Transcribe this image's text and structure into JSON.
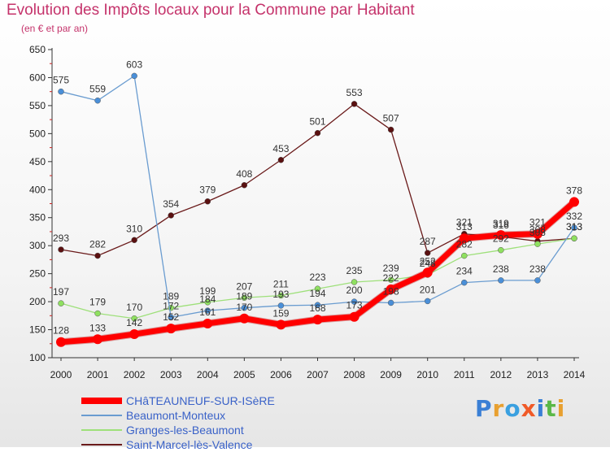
{
  "header": {
    "title": "Evolution des Impôts locaux pour la Commune par Habitant",
    "subtitle": "(en € et par an)"
  },
  "logo": {
    "text": "Proxiti",
    "colors": [
      "#3a7fd5",
      "#e8a030",
      "#3aa0e0",
      "#f05a28",
      "#3a7fd5",
      "#5ab848",
      "#e8a030"
    ]
  },
  "chart_data": {
    "type": "line",
    "title": "Evolution des Impôts locaux pour la Commune par Habitant",
    "subtitle": "(en € et par an)",
    "x": [
      "2000",
      "2001",
      "2002",
      "2003",
      "2004",
      "2005",
      "2006",
      "2007",
      "2008",
      "2009",
      "2010",
      "2011",
      "2012",
      "2013",
      "2014"
    ],
    "ylim": [
      100,
      650
    ],
    "yticks": [
      100,
      150,
      200,
      250,
      300,
      350,
      400,
      450,
      500,
      550,
      600,
      650
    ],
    "grid": false,
    "legend_position": "bottom-left",
    "series": [
      {
        "name": "CHâTEAUNEUF-SUR-ISèRE",
        "color": "#ff0000",
        "values": [
          128,
          133,
          142,
          152,
          161,
          170,
          159,
          168,
          173,
          222,
          252,
          313,
          319,
          321,
          378
        ],
        "labels": [
          "128",
          "133",
          "142",
          "152",
          "161",
          "170",
          "159",
          "168",
          "173",
          "222",
          "252",
          "313",
          "319",
          "321",
          "378"
        ]
      },
      {
        "name": "Beaumont-Monteux",
        "color": "#6a9cd0",
        "values": [
          575,
          559,
          603,
          172,
          184,
          189,
          193,
          194,
          200,
          198,
          201,
          234,
          238,
          238,
          332
        ],
        "labels": [
          "575",
          "559",
          "603",
          "172",
          "184",
          "189",
          "193",
          "194",
          "200",
          "198",
          "201",
          "234",
          "238",
          "238",
          "332"
        ]
      },
      {
        "name": "Granges-les-Beaumont",
        "color": "#9ee07a",
        "values": [
          197,
          179,
          170,
          189,
          199,
          207,
          211,
          223,
          235,
          239,
          248,
          282,
          292,
          303,
          313
        ],
        "labels": [
          "197",
          "179",
          "170",
          "189",
          "199",
          "207",
          "211",
          "223",
          "235",
          "239",
          "248",
          "282",
          "292",
          "303",
          "313"
        ]
      },
      {
        "name": "Saint-Marcel-lès-Valence",
        "color": "#6a1a1a",
        "values": [
          293,
          282,
          310,
          354,
          379,
          408,
          453,
          501,
          553,
          507,
          287,
          321,
          316,
          308,
          313
        ],
        "labels": [
          "293",
          "282",
          "310",
          "354",
          "379",
          "408",
          "453",
          "501",
          "553",
          "507",
          "287",
          "321",
          "316",
          "308",
          "313"
        ]
      }
    ]
  }
}
